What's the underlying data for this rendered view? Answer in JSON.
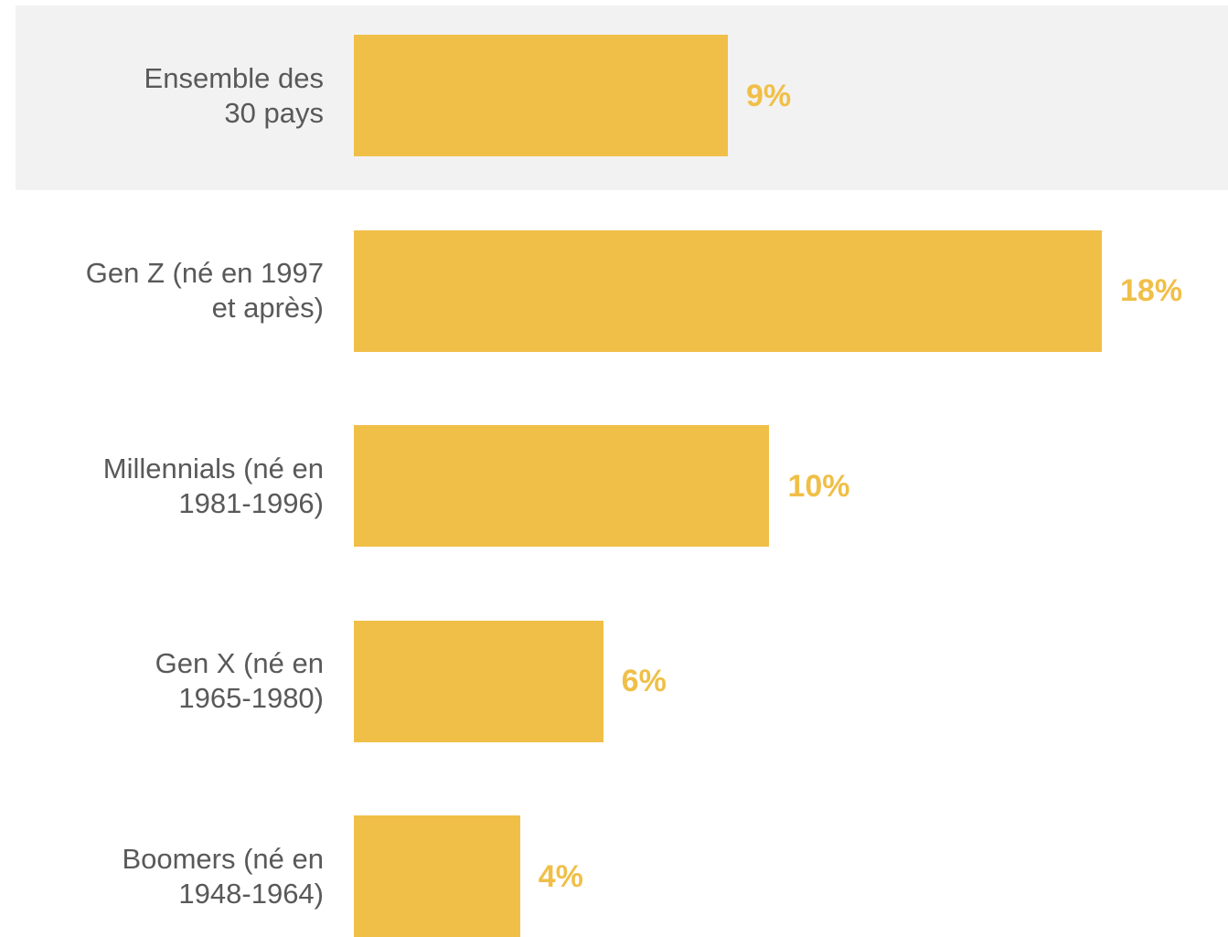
{
  "chart_data": {
    "type": "bar",
    "orientation": "horizontal",
    "categories": [
      "Ensemble des\n30 pays",
      "Gen Z (né en 1997\net après)",
      "Millennials (né en\n1981-1996)",
      "Gen X (né en\n1965-1980)",
      "Boomers (né en\n1948-1964)"
    ],
    "values": [
      9,
      18,
      10,
      6,
      4
    ],
    "value_labels": [
      "9%",
      "18%",
      "10%",
      "6%",
      "4%"
    ],
    "color": "#f0bf48"
  }
}
